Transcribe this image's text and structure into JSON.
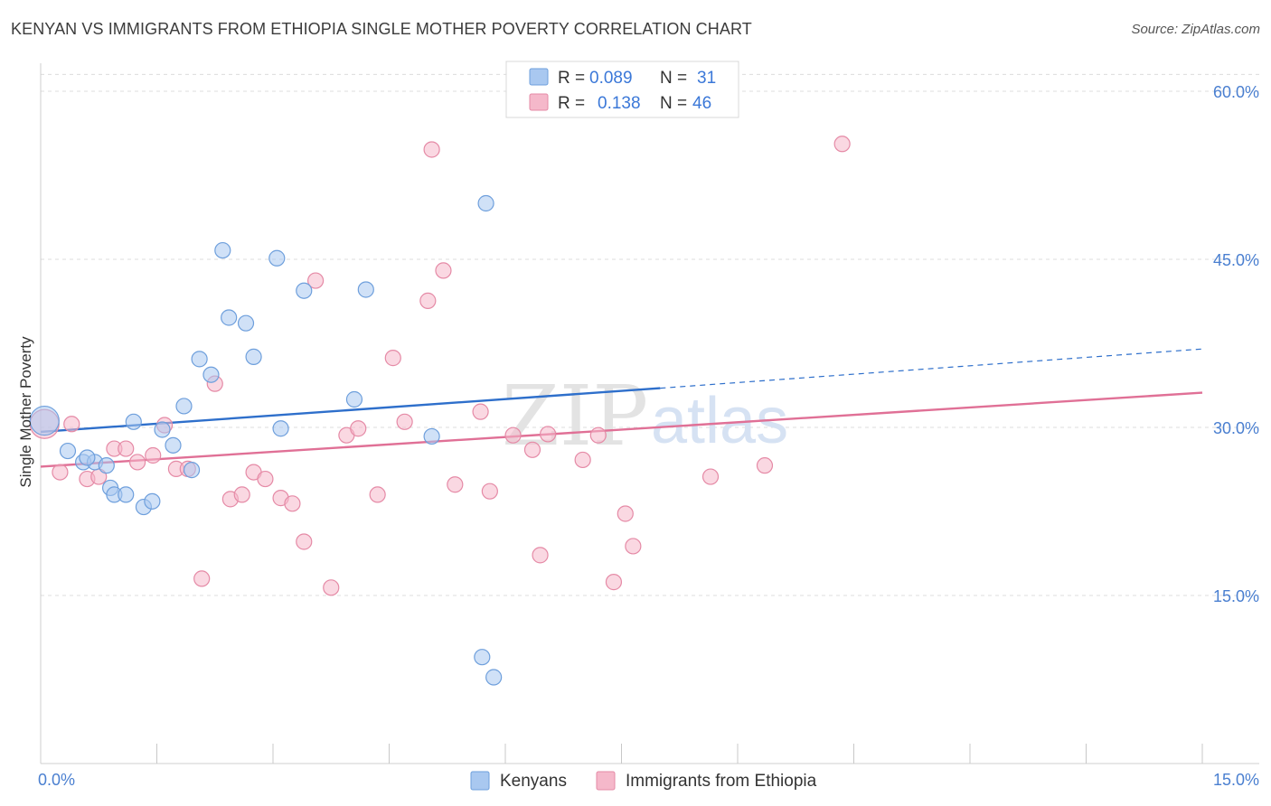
{
  "header": {
    "title": "KENYAN VS IMMIGRANTS FROM ETHIOPIA SINGLE MOTHER POVERTY CORRELATION CHART",
    "source": "Source: ZipAtlas.com"
  },
  "watermark": {
    "zip": "ZIP",
    "atlas": "atlas"
  },
  "legend": {
    "rows": [
      {
        "r_label": "R =",
        "r_value": "0.089",
        "n_label": "N =",
        "n_value": "31",
        "color": "#a9c8f0"
      },
      {
        "r_label": "R =",
        "r_value": "0.138",
        "n_label": "N =",
        "n_value": "46",
        "color": "#f5b8ca"
      }
    ]
  },
  "bottom_legend": [
    {
      "label": "Kenyans",
      "color": "#a9c8f0"
    },
    {
      "label": "Immigrants from Ethiopia",
      "color": "#f5b8ca"
    }
  ],
  "chart_data": {
    "type": "scatter",
    "title": "KENYAN VS IMMIGRANTS FROM ETHIOPIA SINGLE MOTHER POVERTY CORRELATION CHART",
    "xlabel": "",
    "ylabel": "Single Mother Poverty",
    "xlim": [
      0,
      15
    ],
    "ylim": [
      0,
      62.5
    ],
    "x_tick_labels": [
      "0.0%",
      "15.0%"
    ],
    "y_ticks": [
      15,
      30,
      45,
      60
    ],
    "y_tick_labels": [
      "15.0%",
      "30.0%",
      "45.0%",
      "60.0%"
    ],
    "grid": true,
    "legend_position": "top-center",
    "series": [
      {
        "name": "Kenyans",
        "color": "#a9c8f0",
        "stroke": "#6e9fdc",
        "trend": {
          "x": [
            0,
            8.0
          ],
          "y": [
            29.6,
            33.5
          ],
          "dash_to": [
            15,
            37.0
          ],
          "color": "#2e6fcb"
        },
        "points": [
          [
            0.05,
            30.6
          ],
          [
            0.35,
            27.9
          ],
          [
            0.55,
            26.9
          ],
          [
            0.7,
            26.9
          ],
          [
            0.85,
            26.6
          ],
          [
            0.6,
            27.3
          ],
          [
            0.9,
            24.6
          ],
          [
            0.95,
            24.0
          ],
          [
            1.1,
            24.0
          ],
          [
            1.2,
            30.5
          ],
          [
            1.33,
            22.9
          ],
          [
            1.44,
            23.4
          ],
          [
            1.57,
            29.8
          ],
          [
            1.71,
            28.4
          ],
          [
            1.85,
            31.9
          ],
          [
            1.95,
            26.2
          ],
          [
            2.05,
            36.1
          ],
          [
            2.2,
            34.7
          ],
          [
            2.35,
            45.8
          ],
          [
            2.43,
            39.8
          ],
          [
            2.65,
            39.3
          ],
          [
            2.75,
            36.3
          ],
          [
            3.05,
            45.1
          ],
          [
            3.1,
            29.9
          ],
          [
            3.4,
            42.2
          ],
          [
            4.05,
            32.5
          ],
          [
            4.2,
            42.3
          ],
          [
            5.05,
            29.2
          ],
          [
            5.75,
            50.0
          ],
          [
            5.7,
            9.5
          ],
          [
            5.85,
            7.7
          ]
        ]
      },
      {
        "name": "Immigrants from Ethiopia",
        "color": "#f5b8ca",
        "stroke": "#e58aa6",
        "trend": {
          "x": [
            0,
            15
          ],
          "y": [
            26.5,
            33.1
          ],
          "color": "#e07096"
        },
        "points": [
          [
            0.05,
            30.3
          ],
          [
            0.25,
            26.0
          ],
          [
            0.4,
            30.3
          ],
          [
            0.6,
            25.4
          ],
          [
            0.75,
            25.6
          ],
          [
            0.95,
            28.1
          ],
          [
            1.1,
            28.1
          ],
          [
            1.25,
            26.9
          ],
          [
            1.45,
            27.5
          ],
          [
            1.6,
            30.2
          ],
          [
            1.75,
            26.3
          ],
          [
            1.9,
            26.3
          ],
          [
            2.08,
            16.5
          ],
          [
            2.25,
            33.9
          ],
          [
            2.45,
            23.6
          ],
          [
            2.6,
            24.0
          ],
          [
            2.75,
            26.0
          ],
          [
            2.9,
            25.4
          ],
          [
            3.1,
            23.7
          ],
          [
            3.25,
            23.2
          ],
          [
            3.4,
            19.8
          ],
          [
            3.55,
            43.1
          ],
          [
            3.75,
            15.7
          ],
          [
            3.95,
            29.3
          ],
          [
            4.1,
            29.9
          ],
          [
            4.35,
            24.0
          ],
          [
            4.55,
            36.2
          ],
          [
            4.7,
            30.5
          ],
          [
            5.0,
            41.3
          ],
          [
            5.2,
            44.0
          ],
          [
            5.05,
            54.8
          ],
          [
            5.35,
            24.9
          ],
          [
            5.68,
            31.4
          ],
          [
            5.8,
            24.3
          ],
          [
            6.1,
            29.3
          ],
          [
            6.35,
            28.0
          ],
          [
            6.55,
            29.4
          ],
          [
            6.45,
            18.6
          ],
          [
            7.0,
            27.1
          ],
          [
            7.2,
            29.3
          ],
          [
            7.4,
            16.2
          ],
          [
            7.55,
            22.3
          ],
          [
            7.65,
            19.4
          ],
          [
            8.65,
            25.6
          ],
          [
            9.35,
            26.6
          ],
          [
            10.35,
            55.3
          ]
        ]
      }
    ]
  }
}
